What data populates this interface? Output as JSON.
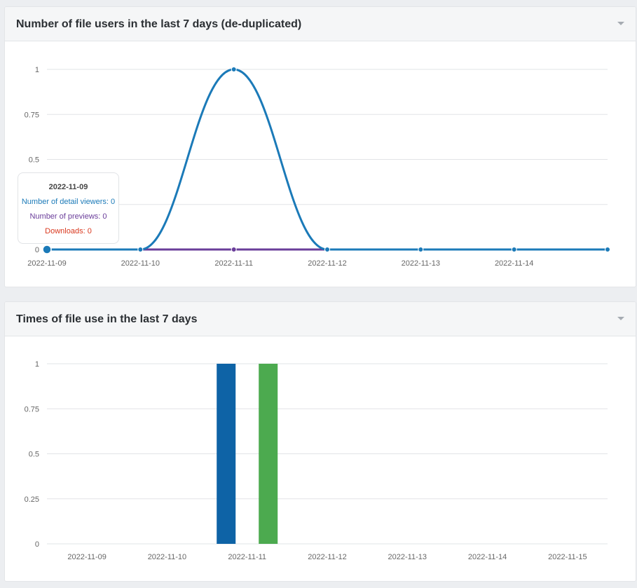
{
  "panels": [
    {
      "title": "Number of file users in the last 7 days (de-duplicated)",
      "tooltip": {
        "date": "2022-11-09",
        "viewers_label": "Number of detail viewers: 0",
        "previews_label": "Number of previews: 0",
        "downloads_label": "Downloads: 0"
      }
    },
    {
      "title": "Times of file use in the last 7 days"
    }
  ],
  "colors": {
    "viewers": "#1b7ab8",
    "previews": "#6a3d9a",
    "downloads": "#d9381e",
    "bar_blue": "#0e63a6",
    "bar_green": "#4caa4f",
    "grid": "#e2e4e7",
    "axis_text": "#666666"
  },
  "chart_data": [
    {
      "type": "line",
      "title": "Number of file users in the last 7 days (de-duplicated)",
      "categories": [
        "2022-11-09",
        "2022-11-10",
        "2022-11-11",
        "2022-11-12",
        "2022-11-13",
        "2022-11-14",
        ""
      ],
      "y_ticks": [
        "0",
        "0.25",
        "0.5",
        "0.75",
        "1"
      ],
      "ylim": [
        0,
        1
      ],
      "smooth": true,
      "grid": true,
      "series": [
        {
          "name": "Number of detail viewers",
          "color_key": "viewers",
          "values": [
            0,
            0,
            1,
            0,
            0,
            0,
            0
          ]
        },
        {
          "name": "Number of previews",
          "color_key": "previews",
          "values": [
            0,
            0,
            0,
            0,
            0,
            0,
            0
          ]
        },
        {
          "name": "Downloads",
          "color_key": "downloads",
          "values": [
            0,
            0,
            0,
            0,
            0,
            0,
            0
          ]
        }
      ],
      "highlighted_category": "2022-11-09"
    },
    {
      "type": "bar",
      "title": "Times of file use in the last 7 days",
      "categories": [
        "2022-11-09",
        "2022-11-10",
        "2022-11-11",
        "2022-11-12",
        "2022-11-13",
        "2022-11-14",
        "2022-11-15"
      ],
      "y_ticks": [
        "0",
        "0.25",
        "0.5",
        "0.75",
        "1"
      ],
      "ylim": [
        0,
        1
      ],
      "grid": true,
      "series": [
        {
          "color_key": "bar_blue",
          "values": [
            0,
            0,
            1,
            0,
            0,
            0,
            0
          ]
        },
        {
          "color_key": "bar_green",
          "values": [
            0,
            0,
            1,
            0,
            0,
            0,
            0
          ]
        }
      ]
    }
  ]
}
